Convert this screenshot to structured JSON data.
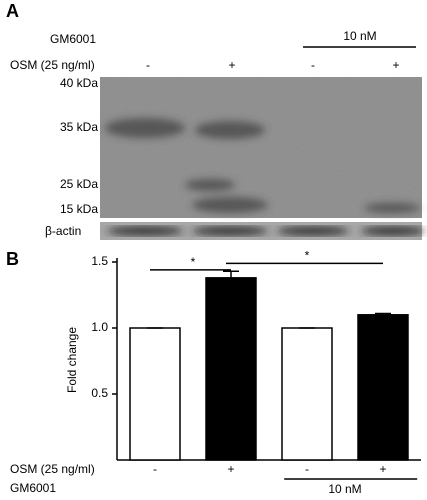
{
  "panel_a": {
    "label": "A",
    "treatment_label": "GM6001",
    "treatment_group": "10 nM",
    "stimulus_label": "OSM (25 ng/ml)",
    "stimulus_signs": [
      "-",
      "+",
      "-",
      "+"
    ],
    "markers": [
      "40 kDa",
      "35 kDa",
      "25 kDa",
      "15 kDa"
    ],
    "loading_control": "β-actin"
  },
  "chart_data": {
    "type": "bar",
    "panel_label": "B",
    "y_label": "Fold change",
    "x_label": "OSM (25 ng/ml)",
    "categories": [
      "-",
      "+",
      "-",
      "+"
    ],
    "values": [
      1.0,
      1.38,
      1.0,
      1.1
    ],
    "errors": [
      0,
      0.05,
      0,
      0.01
    ],
    "colors": [
      "#ffffff",
      "#000000",
      "#ffffff",
      "#000000"
    ],
    "ylim": [
      0,
      1.5
    ],
    "yticks": [
      {
        "value": 0.5,
        "label": "0.5"
      },
      {
        "value": 1.0,
        "label": "1.0"
      },
      {
        "value": 1.5,
        "label": "1.5"
      }
    ],
    "group_row": {
      "label": "GM6001",
      "groups": [
        {
          "label": "10 nM",
          "from": 2,
          "to": 3
        }
      ]
    },
    "annotations": [
      {
        "text": "*",
        "from": 0,
        "to": 1,
        "y": 1.44
      },
      {
        "text": "*",
        "from": 1,
        "to": 3,
        "y": 1.49
      }
    ]
  }
}
